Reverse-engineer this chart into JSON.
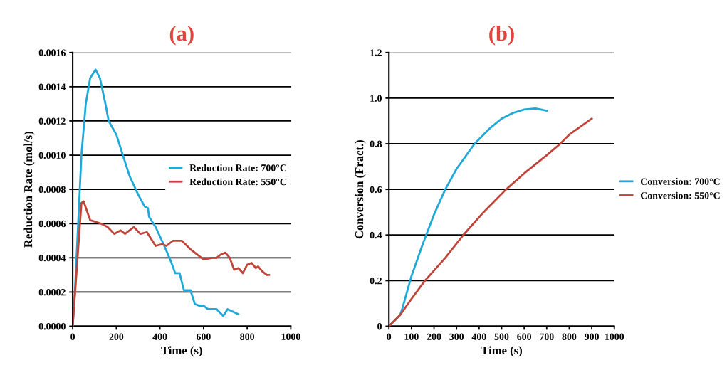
{
  "chart_data": [
    {
      "type": "line",
      "title": "(a)",
      "xlabel": "Time (s)",
      "ylabel": "Reduction Rate (mol/s)",
      "xlim": [
        0,
        1000
      ],
      "xticks": [
        0,
        200,
        400,
        600,
        800,
        1000
      ],
      "ylim": [
        0,
        0.0016
      ],
      "yticks": [
        {
          "value": 0,
          "label": "0.0000"
        },
        {
          "value": 0.0002,
          "label": "0.0002"
        },
        {
          "value": 0.0004,
          "label": "0.0004"
        },
        {
          "value": 0.0006,
          "label": "0.0006"
        },
        {
          "value": 0.0008,
          "label": "0.0008"
        },
        {
          "value": 0.001,
          "label": "0.0010"
        },
        {
          "value": 0.0012,
          "label": "0.0012"
        },
        {
          "value": 0.0014,
          "label": "0.0014"
        },
        {
          "value": 0.0016,
          "label": "0.0016"
        }
      ],
      "grid": "y",
      "legend": "center right",
      "series": [
        {
          "name": "Reduction Rate: 700°C",
          "color": "#1fa8d8",
          "x": [
            0,
            10,
            25,
            40,
            60,
            80,
            105,
            125,
            150,
            165,
            200,
            230,
            260,
            300,
            330,
            345,
            350,
            380,
            420,
            450,
            470,
            490,
            510,
            540,
            560,
            580,
            600,
            620,
            660,
            690,
            710,
            760
          ],
          "values": [
            0,
            0.0002,
            0.0006,
            0.001,
            0.0013,
            0.00145,
            0.0015,
            0.00145,
            0.0013,
            0.0012,
            0.00112,
            0.001,
            0.00088,
            0.00077,
            0.0007,
            0.00069,
            0.00064,
            0.00058,
            0.00047,
            0.00038,
            0.00031,
            0.00031,
            0.00021,
            0.00021,
            0.00013,
            0.00012,
            0.00012,
            0.0001,
            0.0001,
            6e-05,
            0.0001,
            7e-05
          ]
        },
        {
          "name": "Reduction Rate: 550°C",
          "color": "#c1443a",
          "x": [
            0,
            40,
            50,
            80,
            130,
            160,
            190,
            220,
            240,
            280,
            310,
            340,
            380,
            410,
            430,
            460,
            500,
            540,
            580,
            600,
            640,
            660,
            680,
            700,
            720,
            740,
            760,
            780,
            800,
            820,
            840,
            850,
            870,
            890,
            900
          ],
          "values": [
            0,
            0.00072,
            0.00073,
            0.00062,
            0.0006,
            0.00058,
            0.00054,
            0.00056,
            0.00054,
            0.00058,
            0.00054,
            0.00055,
            0.00047,
            0.00048,
            0.00047,
            0.0005,
            0.0005,
            0.00045,
            0.00041,
            0.00039,
            0.0004,
            0.0004,
            0.00042,
            0.00043,
            0.0004,
            0.00033,
            0.00034,
            0.00031,
            0.00036,
            0.00037,
            0.00034,
            0.00035,
            0.00032,
            0.0003,
            0.0003
          ]
        }
      ]
    },
    {
      "type": "line",
      "title": "(b)",
      "xlabel": "Time (s)",
      "ylabel": "Conversion (Fract.)",
      "xlim": [
        0,
        1000
      ],
      "xticks": [
        0,
        100,
        200,
        300,
        400,
        500,
        600,
        700,
        800,
        900,
        1000
      ],
      "ylim": [
        0,
        1.2
      ],
      "yticks": [
        0,
        0.2,
        0.4,
        0.6,
        0.8,
        {
          "value": 1,
          "label": "1.0"
        },
        1.2
      ],
      "grid": "y",
      "legend": "right",
      "series": [
        {
          "name": "Conversion: 700°C",
          "color": "#1fa8d8",
          "x": [
            0,
            50,
            60,
            100,
            150,
            200,
            250,
            300,
            380,
            450,
            500,
            550,
            600,
            650,
            700
          ],
          "values": [
            0,
            0.05,
            0.08,
            0.22,
            0.36,
            0.49,
            0.6,
            0.69,
            0.8,
            0.87,
            0.91,
            0.935,
            0.95,
            0.955,
            0.945
          ]
        },
        {
          "name": "Conversion: 550°C",
          "color": "#c1443a",
          "x": [
            0,
            50,
            100,
            160,
            250,
            330,
            420,
            450,
            520,
            600,
            700,
            760,
            800,
            900
          ],
          "values": [
            0,
            0.05,
            0.12,
            0.2,
            0.3,
            0.4,
            0.5,
            0.53,
            0.6,
            0.67,
            0.75,
            0.8,
            0.84,
            0.91
          ]
        }
      ]
    }
  ]
}
